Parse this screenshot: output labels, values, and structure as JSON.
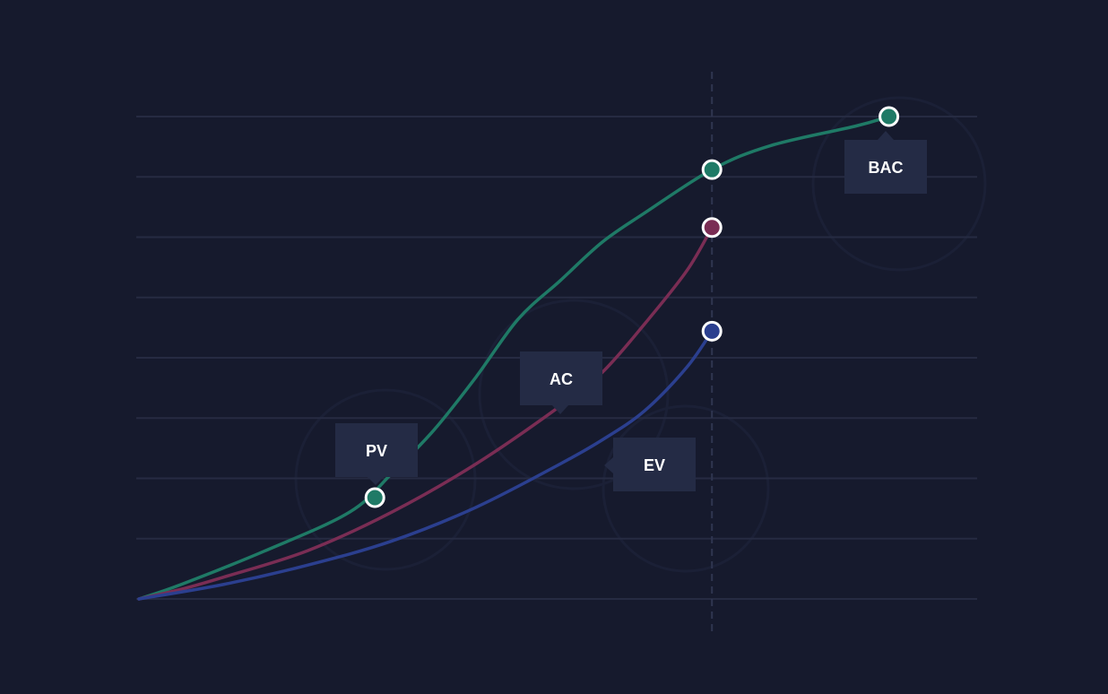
{
  "chart_data": {
    "type": "line",
    "title": "",
    "xlabel": "",
    "ylabel": "",
    "x_range": [
      0,
      1
    ],
    "y_range": [
      0,
      1
    ],
    "grid": true,
    "status_date_x": 0.68,
    "series": [
      {
        "name": "PV",
        "color": "#1f7a66",
        "points": [
          [
            0,
            0
          ],
          [
            0.05,
            0.03
          ],
          [
            0.15,
            0.1
          ],
          [
            0.25,
            0.18
          ],
          [
            0.3,
            0.26
          ],
          [
            0.35,
            0.35
          ],
          [
            0.4,
            0.46
          ],
          [
            0.45,
            0.58
          ],
          [
            0.5,
            0.66
          ],
          [
            0.55,
            0.74
          ],
          [
            0.6,
            0.8
          ],
          [
            0.68,
            0.89
          ],
          [
            0.75,
            0.94
          ],
          [
            0.85,
            0.98
          ],
          [
            0.89,
            1.0
          ]
        ],
        "markers": [
          [
            0.28,
            0.21
          ],
          [
            0.68,
            0.89
          ],
          [
            0.89,
            1.0
          ]
        ]
      },
      {
        "name": "AC",
        "color": "#7a2d54",
        "points": [
          [
            0,
            0
          ],
          [
            0.05,
            0.02
          ],
          [
            0.1,
            0.045
          ],
          [
            0.2,
            0.1
          ],
          [
            0.3,
            0.18
          ],
          [
            0.4,
            0.28
          ],
          [
            0.5,
            0.4
          ],
          [
            0.55,
            0.47
          ],
          [
            0.6,
            0.57
          ],
          [
            0.65,
            0.68
          ],
          [
            0.68,
            0.77
          ]
        ],
        "markers": [
          [
            0.68,
            0.77
          ]
        ]
      },
      {
        "name": "EV",
        "color": "#2b3f8f",
        "points": [
          [
            0,
            0
          ],
          [
            0.1,
            0.03
          ],
          [
            0.2,
            0.07
          ],
          [
            0.3,
            0.12
          ],
          [
            0.4,
            0.19
          ],
          [
            0.5,
            0.28
          ],
          [
            0.55,
            0.33
          ],
          [
            0.6,
            0.39
          ],
          [
            0.65,
            0.48
          ],
          [
            0.68,
            0.555
          ]
        ],
        "markers": [
          [
            0.68,
            0.555
          ]
        ]
      }
    ],
    "callouts": [
      {
        "label": "PV",
        "series": "PV"
      },
      {
        "label": "AC",
        "series": "AC"
      },
      {
        "label": "EV",
        "series": "EV"
      },
      {
        "label": "BAC",
        "series": "PV"
      }
    ]
  },
  "colors": {
    "background": "#161a2d",
    "gridline": "#262b42",
    "callout_box": "#242b45",
    "marker_stroke": "#ffffff"
  }
}
